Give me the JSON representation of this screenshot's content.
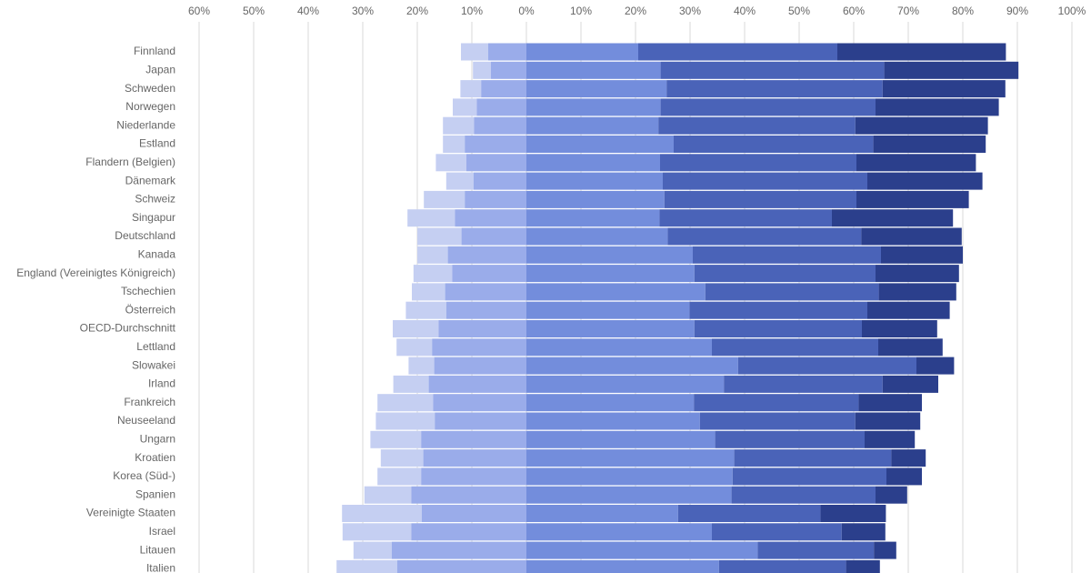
{
  "chart_data": {
    "type": "bar",
    "orientation": "horizontal",
    "stacked": true,
    "diverging": true,
    "xlim": [
      -60,
      100
    ],
    "x_ticks": [
      "60%",
      "50%",
      "40%",
      "30%",
      "20%",
      "10%",
      "0%",
      "10%",
      "20%",
      "30%",
      "40%",
      "50%",
      "60%",
      "70%",
      "80%",
      "90%",
      "100%"
    ],
    "grid": true,
    "legend": "none",
    "categories": [
      "Finnland",
      "Japan",
      "Schweden",
      "Norwegen",
      "Niederlande",
      "Estland",
      "Flandern (Belgien)",
      "Dänemark",
      "Schweiz",
      "Singapur",
      "Deutschland",
      "Kanada",
      "England (Vereinigtes Königreich)",
      "Tschechien",
      "Österreich",
      "OECD-Durchschnitt",
      "Lettland",
      "Slowakei",
      "Irland",
      "Frankreich",
      "Neuseeland",
      "Ungarn",
      "Kroatien",
      "Korea (Süd-)",
      "Spanien",
      "Vereinigte Staaten",
      "Israel",
      "Litauen",
      "Italien"
    ],
    "series": [
      {
        "side": "negative",
        "color": "#c5cff2",
        "values": [
          5.0,
          3.3,
          3.8,
          4.4,
          5.7,
          4.0,
          5.6,
          5.0,
          7.5,
          8.7,
          8.1,
          5.6,
          7.1,
          6.1,
          7.4,
          8.4,
          6.5,
          4.7,
          6.5,
          10.2,
          10.8,
          9.3,
          7.8,
          8.0,
          8.6,
          14.6,
          12.6,
          7.0,
          11.1
        ]
      },
      {
        "side": "negative",
        "color": "#9aacea",
        "values": [
          7.0,
          6.5,
          8.3,
          9.1,
          9.6,
          11.3,
          11.0,
          9.7,
          11.3,
          13.1,
          11.9,
          14.4,
          13.6,
          14.9,
          14.7,
          16.1,
          17.3,
          16.9,
          17.9,
          17.1,
          16.8,
          19.3,
          18.9,
          19.3,
          21.1,
          19.2,
          21.1,
          24.7,
          23.7
        ]
      },
      {
        "side": "positive",
        "color": "#738ddc",
        "values": [
          20.5,
          24.6,
          25.7,
          24.6,
          24.2,
          27.0,
          24.5,
          25.0,
          25.3,
          24.4,
          25.9,
          30.5,
          30.8,
          32.8,
          29.9,
          30.8,
          34.0,
          38.8,
          36.2,
          30.7,
          31.8,
          34.6,
          38.1,
          37.8,
          37.6,
          27.8,
          34.0,
          42.4,
          35.3
        ]
      },
      {
        "side": "positive",
        "color": "#4a63b8",
        "values": [
          36.5,
          41.0,
          39.6,
          39.4,
          36.1,
          36.6,
          36.0,
          37.5,
          35.2,
          31.6,
          35.5,
          34.5,
          33.2,
          31.8,
          32.6,
          30.7,
          30.5,
          32.7,
          29.1,
          30.2,
          28.5,
          27.4,
          28.8,
          28.2,
          26.4,
          26.1,
          23.8,
          21.3,
          23.3
        ]
      },
      {
        "side": "positive",
        "color": "#2b3f8c",
        "values": [
          30.9,
          24.6,
          22.5,
          22.6,
          24.3,
          20.6,
          21.9,
          21.1,
          20.6,
          22.2,
          18.4,
          15.0,
          15.3,
          14.2,
          15.1,
          13.8,
          11.8,
          6.9,
          10.2,
          11.6,
          11.9,
          9.2,
          6.3,
          6.5,
          5.8,
          12.0,
          8.0,
          4.1,
          6.2
        ]
      }
    ]
  }
}
